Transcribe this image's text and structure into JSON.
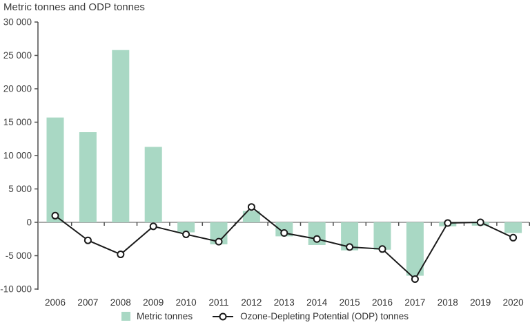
{
  "chart_data": {
    "type": "bar+line",
    "title": "Metric tonnes and ODP tonnes",
    "categories": [
      "2006",
      "2007",
      "2008",
      "2009",
      "2010",
      "2011",
      "2012",
      "2013",
      "2014",
      "2015",
      "2016",
      "2017",
      "2018",
      "2019",
      "2020"
    ],
    "series": [
      {
        "name": "Metric tonnes",
        "type": "bar",
        "color": "#a9d8c4",
        "values": [
          15700,
          13500,
          25800,
          11300,
          -1500,
          -3300,
          1700,
          -2100,
          -3400,
          -4200,
          -4100,
          -8000,
          -600,
          -500,
          -1600
        ]
      },
      {
        "name": "Ozone-Depleting Potential (ODP) tonnes",
        "type": "line",
        "color": "#1a1a1a",
        "marker": "open-circle",
        "values": [
          1000,
          -2700,
          -4800,
          -600,
          -1800,
          -2900,
          2300,
          -1600,
          -2500,
          -3700,
          -4000,
          -8500,
          -100,
          0,
          -2300
        ]
      }
    ],
    "ylim": [
      -10000,
      30000
    ],
    "yticks": [
      {
        "value": 30000,
        "label": "30 000"
      },
      {
        "value": 25000,
        "label": "25 000"
      },
      {
        "value": 20000,
        "label": "20 000"
      },
      {
        "value": 15000,
        "label": "15 000"
      },
      {
        "value": 10000,
        "label": "10 000"
      },
      {
        "value": 5000,
        "label": "5 000"
      },
      {
        "value": 0,
        "label": "0"
      },
      {
        "value": -5000,
        "label": "-5 000"
      },
      {
        "value": -10000,
        "label": "-10 000"
      }
    ],
    "grid": false,
    "legend_position": "bottom-center",
    "axis_color": "#4d4d4d",
    "zero_line_color": "#8c8c8c",
    "tick_label_color": "#404040"
  }
}
